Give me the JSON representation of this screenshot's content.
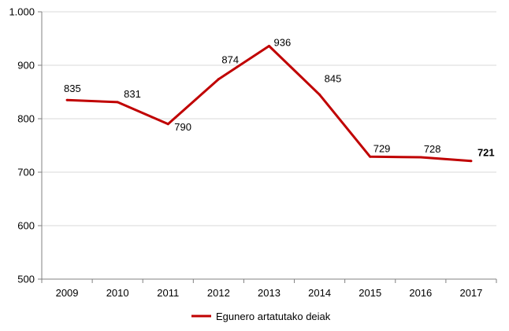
{
  "chart_data": {
    "type": "line",
    "categories": [
      "2009",
      "2010",
      "2011",
      "2012",
      "2013",
      "2014",
      "2015",
      "2016",
      "2017"
    ],
    "series": [
      {
        "name": "Egunero artatutako deiak",
        "values": [
          835,
          831,
          790,
          874,
          936,
          845,
          729,
          728,
          721
        ],
        "labels": [
          "835",
          "831",
          "790",
          "874",
          "936",
          "845",
          "729",
          "728",
          "721"
        ],
        "color": "#C00000"
      }
    ],
    "ylim": [
      500,
      1000
    ],
    "yticks": [
      {
        "value": 500,
        "label": "500"
      },
      {
        "value": 600,
        "label": "600"
      },
      {
        "value": 700,
        "label": "700"
      },
      {
        "value": 800,
        "label": "800"
      },
      {
        "value": 900,
        "label": "900"
      },
      {
        "value": 1000,
        "label": "1.000"
      }
    ],
    "grid": true,
    "gridColor": "#D9D9D9",
    "axisColor": "#808080",
    "legend": "bottom",
    "emphasized_label_index": 8
  }
}
